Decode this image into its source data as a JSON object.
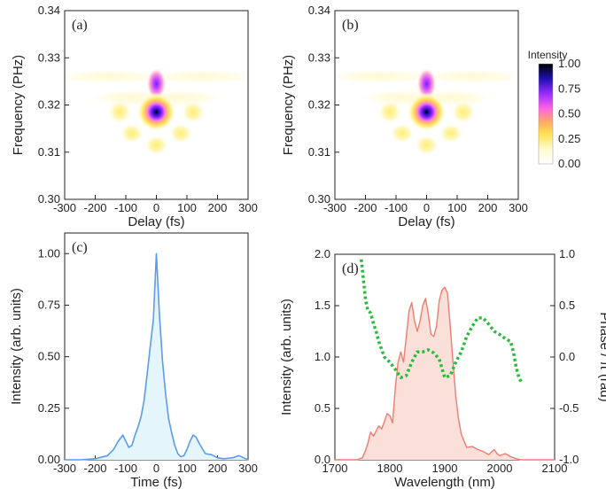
{
  "chart_data": [
    {
      "panel": "(a)",
      "type": "heatmap",
      "xlabel": "Delay (fs)",
      "ylabel": "Frequency (PHz)",
      "xlim": [
        -300,
        300
      ],
      "ylim": [
        0.3,
        0.34
      ],
      "xticks": [
        -300,
        -200,
        -100,
        0,
        100,
        200,
        300
      ],
      "yticks": [
        "0.30",
        "0.31",
        "0.32",
        "0.33",
        "0.34"
      ],
      "peak": {
        "delay": 0,
        "frequency": 0.3185,
        "value": 1.0
      },
      "colormap": [
        "#ffffff",
        "#ffffb0",
        "#ffe24d",
        "#ffaa55",
        "#ff55ff",
        "#8a22ff",
        "#1f0fb0",
        "#000000"
      ]
    },
    {
      "panel": "(b)",
      "type": "heatmap",
      "xlabel": "Delay (fs)",
      "ylabel": "Frequency (PHz)",
      "xlim": [
        -300,
        300
      ],
      "ylim": [
        0.3,
        0.34
      ],
      "xticks": [
        -300,
        -200,
        -100,
        0,
        100,
        200,
        300
      ],
      "yticks": [
        "0.30",
        "0.31",
        "0.32",
        "0.33",
        "0.34"
      ],
      "peak": {
        "delay": 0,
        "frequency": 0.3185,
        "value": 1.0
      },
      "colorbar": {
        "title": "Intensity",
        "ticks": [
          "1.00",
          "0.75",
          "0.50",
          "0.25",
          "0.00"
        ]
      }
    },
    {
      "panel": "(c)",
      "type": "area",
      "xlabel": "Time (fs)",
      "ylabel": "Intensity (arb. units)",
      "xlim": [
        -300,
        300
      ],
      "ylim": [
        0,
        1.1
      ],
      "xticks": [
        -300,
        -200,
        -100,
        0,
        100,
        200,
        300
      ],
      "yticks": [
        "0.00",
        "0.25",
        "0.50",
        "0.75",
        "1.00"
      ],
      "color": "#5b9bea",
      "fill": "#e4f6fb",
      "x": [
        -300,
        -250,
        -200,
        -160,
        -140,
        -125,
        -110,
        -100,
        -90,
        -80,
        -70,
        -60,
        -50,
        -40,
        -30,
        -20,
        -10,
        0,
        10,
        20,
        30,
        40,
        50,
        60,
        70,
        80,
        90,
        100,
        110,
        120,
        130,
        140,
        160,
        180,
        200,
        220,
        250,
        270,
        300
      ],
      "values": [
        0,
        0,
        0.005,
        0.02,
        0.05,
        0.09,
        0.12,
        0.09,
        0.06,
        0.07,
        0.12,
        0.16,
        0.21,
        0.29,
        0.42,
        0.55,
        0.68,
        1.0,
        0.7,
        0.48,
        0.32,
        0.2,
        0.13,
        0.07,
        0.03,
        0.015,
        0.02,
        0.05,
        0.09,
        0.12,
        0.11,
        0.08,
        0.03,
        0.025,
        0.01,
        0.005,
        0.01,
        0.02,
        0.0
      ]
    },
    {
      "panel": "(d)",
      "type": "area",
      "xlabel": "Wavelength (nm)",
      "ylabel": "Intensity (arb. units)",
      "y2label": "Phase / π (rad)",
      "xlim": [
        1700,
        2100
      ],
      "ylim": [
        0,
        2.0
      ],
      "y2lim": [
        -1.0,
        1.0
      ],
      "xticks": [
        1700,
        1800,
        1900,
        2000,
        2100
      ],
      "yticks": [
        "0.0",
        "0.5",
        "1.0",
        "1.5",
        "2.0"
      ],
      "y2ticks": [
        "1.0",
        "0.5",
        "0.0",
        "-0.5",
        "-1.0"
      ],
      "series": [
        {
          "color": "#f07c70",
          "fill": "#fbe0d9",
          "x": [
            1700,
            1740,
            1750,
            1755,
            1760,
            1765,
            1770,
            1775,
            1780,
            1785,
            1790,
            1795,
            1800,
            1805,
            1810,
            1815,
            1820,
            1825,
            1830,
            1835,
            1840,
            1845,
            1850,
            1855,
            1860,
            1865,
            1870,
            1875,
            1880,
            1885,
            1890,
            1895,
            1900,
            1905,
            1910,
            1915,
            1920,
            1925,
            1930,
            1940,
            1950,
            1960,
            1970,
            1980,
            1990,
            1995,
            2000,
            2010,
            2020,
            2030,
            2040,
            2060,
            2100
          ],
          "values": [
            0,
            0,
            0.02,
            0.08,
            0.16,
            0.27,
            0.23,
            0.28,
            0.33,
            0.3,
            0.37,
            0.45,
            0.43,
            0.36,
            0.7,
            0.95,
            1.05,
            0.95,
            1.2,
            1.45,
            1.53,
            1.35,
            1.25,
            1.35,
            1.5,
            1.57,
            1.42,
            1.22,
            1.2,
            1.3,
            1.55,
            1.65,
            1.68,
            1.62,
            1.3,
            0.95,
            0.62,
            0.4,
            0.25,
            0.12,
            0.13,
            0.1,
            0.08,
            0.05,
            0.1,
            0.06,
            0.04,
            0.06,
            0.03,
            0.01,
            0.0,
            0.0,
            0.0
          ]
        },
        {
          "axis": "right",
          "style": "dotted",
          "color": "#2bbb3c",
          "x": [
            1748,
            1752,
            1756,
            1760,
            1765,
            1770,
            1775,
            1780,
            1790,
            1800,
            1810,
            1820,
            1830,
            1840,
            1850,
            1860,
            1870,
            1880,
            1890,
            1900,
            1910,
            1920,
            1930,
            1940,
            1950,
            1960,
            1970,
            1980,
            1990,
            2000,
            2010,
            2020,
            2025,
            2030,
            2035,
            2040
          ],
          "values": [
            0.95,
            0.75,
            0.55,
            0.45,
            0.43,
            0.33,
            0.25,
            0.15,
            0.0,
            -0.05,
            -0.12,
            -0.2,
            -0.18,
            -0.05,
            0.05,
            0.05,
            0.07,
            0.04,
            -0.02,
            -0.2,
            -0.18,
            -0.05,
            0.05,
            0.2,
            0.3,
            0.38,
            0.38,
            0.32,
            0.25,
            0.22,
            0.18,
            0.15,
            0.05,
            -0.1,
            -0.2,
            -0.25
          ]
        }
      ]
    }
  ]
}
